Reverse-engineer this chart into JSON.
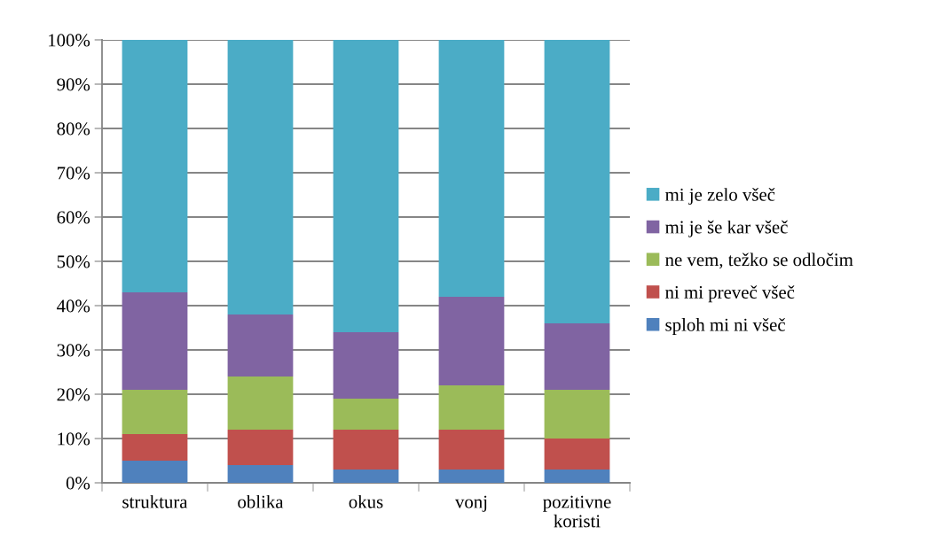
{
  "chart_data": {
    "type": "bar",
    "stacked": true,
    "categories": [
      "struktura",
      "oblika",
      "okus",
      "vonj",
      "pozitivne\nkoristi"
    ],
    "series": [
      {
        "name": "sploh mi ni všeč",
        "color": "#4f81bd",
        "values": [
          5,
          4,
          3,
          3,
          3
        ]
      },
      {
        "name": "ni mi preveč všeč",
        "color": "#c0504d",
        "values": [
          6,
          8,
          9,
          9,
          7
        ]
      },
      {
        "name": "ne vem, težko se odločim",
        "color": "#9bbb59",
        "values": [
          10,
          12,
          7,
          10,
          11
        ]
      },
      {
        "name": "mi je še kar všeč",
        "color": "#8064a2",
        "values": [
          22,
          14,
          15,
          20,
          15
        ]
      },
      {
        "name": "mi je zelo všeč",
        "color": "#4bacc6",
        "values": [
          57,
          62,
          66,
          58,
          64
        ]
      }
    ],
    "ylim": [
      0,
      100
    ],
    "yticks": [
      {
        "value": 0,
        "label": "0%"
      },
      {
        "value": 10,
        "label": "10%"
      },
      {
        "value": 20,
        "label": "20%"
      },
      {
        "value": 30,
        "label": "30%"
      },
      {
        "value": 40,
        "label": "40%"
      },
      {
        "value": 50,
        "label": "50%"
      },
      {
        "value": 60,
        "label": "60%"
      },
      {
        "value": 70,
        "label": "70%"
      },
      {
        "value": 80,
        "label": "80%"
      },
      {
        "value": 90,
        "label": "90%"
      },
      {
        "value": 100,
        "label": "100%"
      }
    ],
    "grid": "y",
    "legend": "right"
  }
}
